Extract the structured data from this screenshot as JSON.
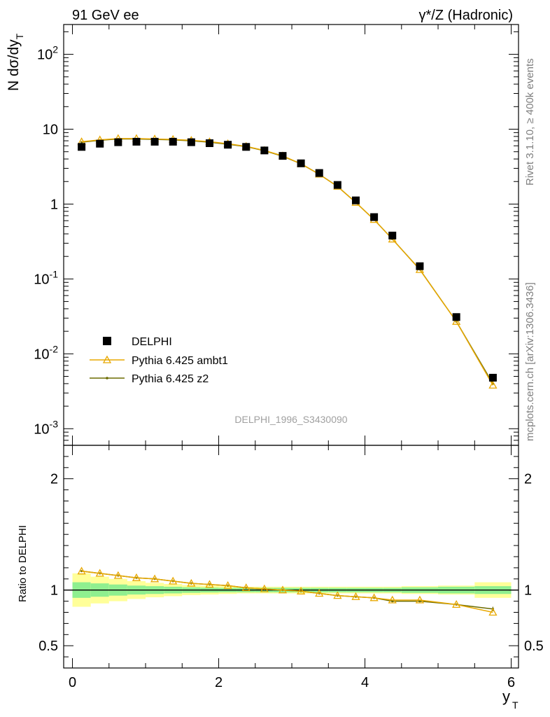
{
  "header": {
    "left": "91 GeV ee",
    "right": "γ*/Z (Hadronic)"
  },
  "side_text": {
    "rivet": "Rivet 3.1.10, ≥ 400k events",
    "mcplots": "mcplots.cern.ch [arXiv:1306.3436]"
  },
  "watermark": "DELPHI_1996_S3430090",
  "colors": {
    "data": "#000000",
    "ambt1": "#e8a800",
    "z2": "#6b6b00",
    "band_inner": "#8fef8f",
    "band_outer": "#ffff99"
  },
  "chart_data": [
    {
      "type": "scatter",
      "title": "",
      "ylabel": "N dσ/dy_T",
      "ylog": true,
      "ylim": [
        0.0006,
        250
      ],
      "xlim": [
        -0.12,
        6.1
      ],
      "x_ticks": [
        0,
        2,
        4,
        6
      ],
      "y_tick_labels": [
        {
          "value": 0.001,
          "base": "10",
          "exp": "-3"
        },
        {
          "value": 0.01,
          "base": "10",
          "exp": "-2"
        },
        {
          "value": 0.1,
          "base": "10",
          "exp": "-1"
        },
        {
          "value": 1,
          "base": "1",
          "exp": ""
        },
        {
          "value": 10,
          "base": "10",
          "exp": ""
        },
        {
          "value": 100,
          "base": "10",
          "exp": "2"
        }
      ],
      "legend_position": "bottom-left",
      "x": [
        0.125,
        0.375,
        0.625,
        0.875,
        1.125,
        1.375,
        1.625,
        1.875,
        2.125,
        2.375,
        2.625,
        2.875,
        3.125,
        3.375,
        3.625,
        3.875,
        4.125,
        4.375,
        4.75,
        5.25,
        5.75
      ],
      "series": [
        {
          "name": "DELPHI",
          "values": [
            5.8,
            6.4,
            6.7,
            6.8,
            6.8,
            6.8,
            6.7,
            6.5,
            6.2,
            5.8,
            5.2,
            4.4,
            3.5,
            2.6,
            1.8,
            1.12,
            0.67,
            0.38,
            0.148,
            0.031,
            0.0048
          ]
        },
        {
          "name": "Pythia 6.425 ambt1",
          "values": [
            6.8,
            7.2,
            7.5,
            7.5,
            7.4,
            7.3,
            7.1,
            6.8,
            6.4,
            5.9,
            5.2,
            4.4,
            3.45,
            2.5,
            1.72,
            1.05,
            0.62,
            0.34,
            0.133,
            0.027,
            0.0038
          ]
        },
        {
          "name": "Pythia 6.425 z2",
          "values": [
            6.7,
            7.1,
            7.4,
            7.4,
            7.3,
            7.2,
            7.0,
            6.7,
            6.3,
            5.85,
            5.15,
            4.35,
            3.45,
            2.5,
            1.72,
            1.05,
            0.62,
            0.34,
            0.134,
            0.027,
            0.004
          ]
        }
      ]
    },
    {
      "type": "line",
      "xlabel": "y_T",
      "ylabel": "Ratio to DELPHI",
      "ylim": [
        0.3,
        2.3
      ],
      "xlim": [
        -0.12,
        6.1
      ],
      "x_ticks": [
        0,
        2,
        4,
        6
      ],
      "y_ticks": [
        0.5,
        1,
        2
      ],
      "bins": [
        0.0,
        0.25,
        0.5,
        0.75,
        1.0,
        1.25,
        1.5,
        1.75,
        2.0,
        2.25,
        2.5,
        2.75,
        3.0,
        3.25,
        3.5,
        3.75,
        4.0,
        4.25,
        4.5,
        5.0,
        5.5,
        6.0
      ],
      "band_inner": [
        0.07,
        0.06,
        0.05,
        0.04,
        0.035,
        0.03,
        0.025,
        0.022,
        0.02,
        0.02,
        0.02,
        0.02,
        0.02,
        0.02,
        0.02,
        0.02,
        0.02,
        0.02,
        0.025,
        0.03,
        0.035
      ],
      "band_outer": [
        0.15,
        0.12,
        0.1,
        0.08,
        0.065,
        0.055,
        0.045,
        0.04,
        0.035,
        0.03,
        0.03,
        0.03,
        0.03,
        0.03,
        0.03,
        0.03,
        0.03,
        0.03,
        0.035,
        0.04,
        0.07
      ],
      "x": [
        0.125,
        0.375,
        0.625,
        0.875,
        1.125,
        1.375,
        1.625,
        1.875,
        2.125,
        2.375,
        2.625,
        2.875,
        3.125,
        3.375,
        3.625,
        3.875,
        4.125,
        4.375,
        4.75,
        5.25,
        5.75
      ],
      "series": [
        {
          "name": "Pythia 6.425 ambt1",
          "values": [
            1.17,
            1.15,
            1.13,
            1.11,
            1.1,
            1.08,
            1.06,
            1.05,
            1.04,
            1.02,
            1.01,
            1.0,
            0.99,
            0.97,
            0.95,
            0.94,
            0.93,
            0.91,
            0.91,
            0.87,
            0.8
          ]
        },
        {
          "name": "Pythia 6.425 z2",
          "values": [
            1.17,
            1.15,
            1.13,
            1.11,
            1.1,
            1.08,
            1.06,
            1.05,
            1.04,
            1.02,
            1.01,
            1.0,
            0.99,
            0.97,
            0.95,
            0.94,
            0.93,
            0.9,
            0.9,
            0.87,
            0.83
          ]
        }
      ]
    }
  ]
}
